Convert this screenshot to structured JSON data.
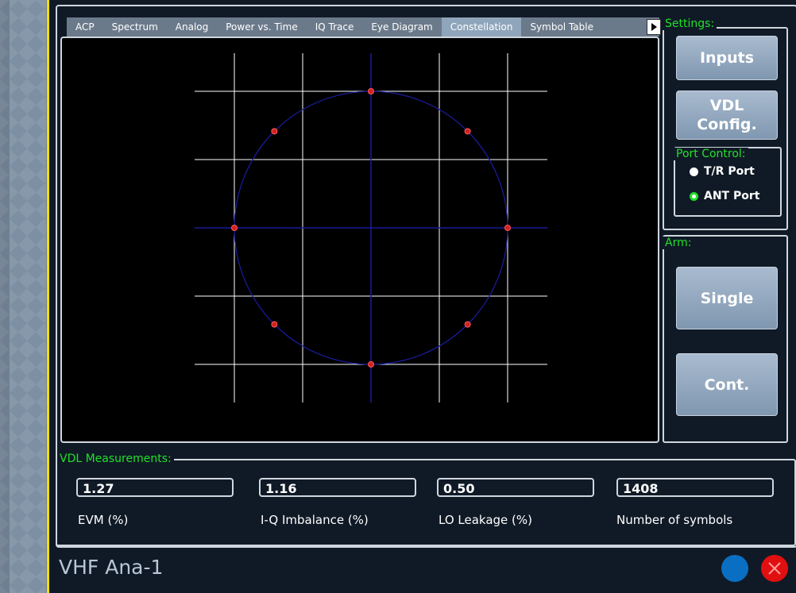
{
  "tabs": [
    {
      "label": "ACP"
    },
    {
      "label": "Spectrum"
    },
    {
      "label": "Analog"
    },
    {
      "label": "Power vs. Time"
    },
    {
      "label": "IQ Trace"
    },
    {
      "label": "Eye Diagram"
    },
    {
      "label": "Constellation",
      "active": true
    },
    {
      "label": "Symbol Table"
    }
  ],
  "settings": {
    "label": "Settings:",
    "inputs_label": "Inputs",
    "vdl_config_line1": "VDL",
    "vdl_config_line2": "Config.",
    "port_control": {
      "label": "Port Control:",
      "options": [
        {
          "label": "T/R Port",
          "selected": false
        },
        {
          "label": "ANT Port",
          "selected": true
        }
      ]
    }
  },
  "arm": {
    "label": "Arm:",
    "single_label": "Single",
    "cont_label": "Cont."
  },
  "constellation": {
    "points_deg": [
      0,
      45,
      90,
      135,
      180,
      225,
      270,
      315
    ],
    "point_color": "#d02020",
    "circle_color": "#1a1a9a",
    "grid_color": "#ffffff"
  },
  "measurements": {
    "label": "VDL Measurements:",
    "items": [
      {
        "value": "1.27",
        "label": "EVM (%)"
      },
      {
        "value": "1.16",
        "label": "I-Q Imbalance (%)"
      },
      {
        "value": "0.50",
        "label": "LO Leakage (%)"
      },
      {
        "value": "1408",
        "label": "Number of symbols"
      }
    ]
  },
  "app_title": "VHF Ana-1",
  "colors": {
    "accent_green": "#22e02a",
    "status_blue": "#0a6fc2",
    "close_red": "#e01010"
  }
}
